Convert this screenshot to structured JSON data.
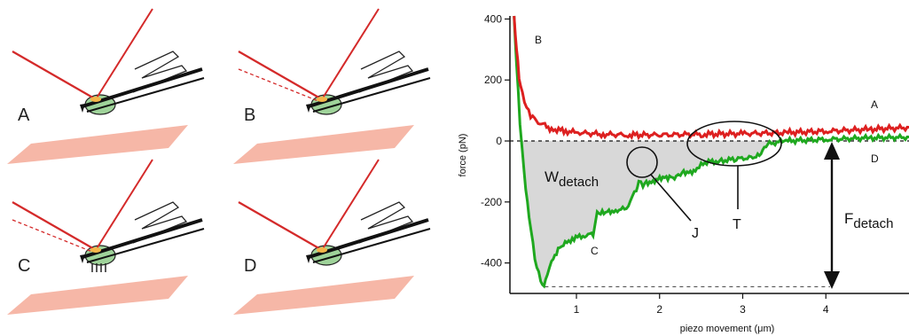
{
  "panels": [
    {
      "label": "A"
    },
    {
      "label": "B"
    },
    {
      "label": "C"
    },
    {
      "label": "D"
    }
  ],
  "colors": {
    "laser": "#d42a2a",
    "cell": "#9fd39a",
    "substrate": "#f6b7a7",
    "approach": "#dd2020",
    "retract": "#1fa81f",
    "work_area": "#d8d8d8"
  },
  "chart_data": {
    "type": "line",
    "title": "",
    "xlabel": "piezo movement (μm)",
    "ylabel": "force (pN)",
    "xlim": [
      0.2,
      5.0
    ],
    "ylim": [
      -500,
      410
    ],
    "x_ticks": [
      1,
      2,
      3,
      4
    ],
    "y_ticks": [
      400,
      200,
      0,
      -200,
      -400
    ],
    "grid": false,
    "series": [
      {
        "curve_label": "B",
        "color": "#dd2020",
        "points": [
          [
            0.25,
            410
          ],
          [
            0.28,
            300
          ],
          [
            0.31,
            210
          ],
          [
            0.35,
            150
          ],
          [
            0.4,
            110
          ],
          [
            0.45,
            85
          ],
          [
            0.52,
            65
          ],
          [
            0.6,
            50
          ],
          [
            0.7,
            40
          ],
          [
            0.85,
            33
          ],
          [
            1.0,
            28
          ],
          [
            1.3,
            22
          ],
          [
            1.6,
            20
          ],
          [
            2.0,
            20
          ],
          [
            2.5,
            22
          ],
          [
            3.0,
            24
          ],
          [
            3.5,
            27
          ],
          [
            4.0,
            32
          ],
          [
            4.5,
            38
          ],
          [
            5.0,
            44
          ]
        ]
      },
      {
        "curve_label": "C",
        "color": "#1fa81f",
        "points": [
          [
            0.25,
            410
          ],
          [
            0.28,
            250
          ],
          [
            0.32,
            60
          ],
          [
            0.37,
            -100
          ],
          [
            0.43,
            -250
          ],
          [
            0.5,
            -380
          ],
          [
            0.57,
            -460
          ],
          [
            0.61,
            -478
          ],
          [
            0.65,
            -440
          ],
          [
            0.7,
            -390
          ],
          [
            0.8,
            -350
          ],
          [
            0.95,
            -320
          ],
          [
            1.1,
            -310
          ],
          [
            1.2,
            -305
          ],
          [
            1.25,
            -240
          ],
          [
            1.35,
            -235
          ],
          [
            1.45,
            -228
          ],
          [
            1.6,
            -222
          ],
          [
            1.65,
            -195
          ],
          [
            1.72,
            -160
          ],
          [
            1.75,
            -130
          ],
          [
            1.8,
            -142
          ],
          [
            1.9,
            -132
          ],
          [
            2.0,
            -125
          ],
          [
            2.1,
            -120
          ],
          [
            2.2,
            -118
          ],
          [
            2.25,
            -105
          ],
          [
            2.35,
            -100
          ],
          [
            2.45,
            -98
          ],
          [
            2.5,
            -72
          ],
          [
            2.7,
            -66
          ],
          [
            2.9,
            -60
          ],
          [
            3.1,
            -54
          ],
          [
            3.2,
            -48
          ],
          [
            3.3,
            -10
          ],
          [
            3.5,
            0
          ],
          [
            4.0,
            5
          ],
          [
            4.5,
            10
          ],
          [
            5.0,
            12
          ]
        ]
      }
    ],
    "annotations": [
      {
        "text": "A"
      },
      {
        "text": "D"
      },
      {
        "text": "J"
      },
      {
        "text": "T"
      },
      {
        "text_main": "W",
        "text_sub": "detach"
      },
      {
        "text_main": "F",
        "text_sub": "detach"
      }
    ]
  }
}
